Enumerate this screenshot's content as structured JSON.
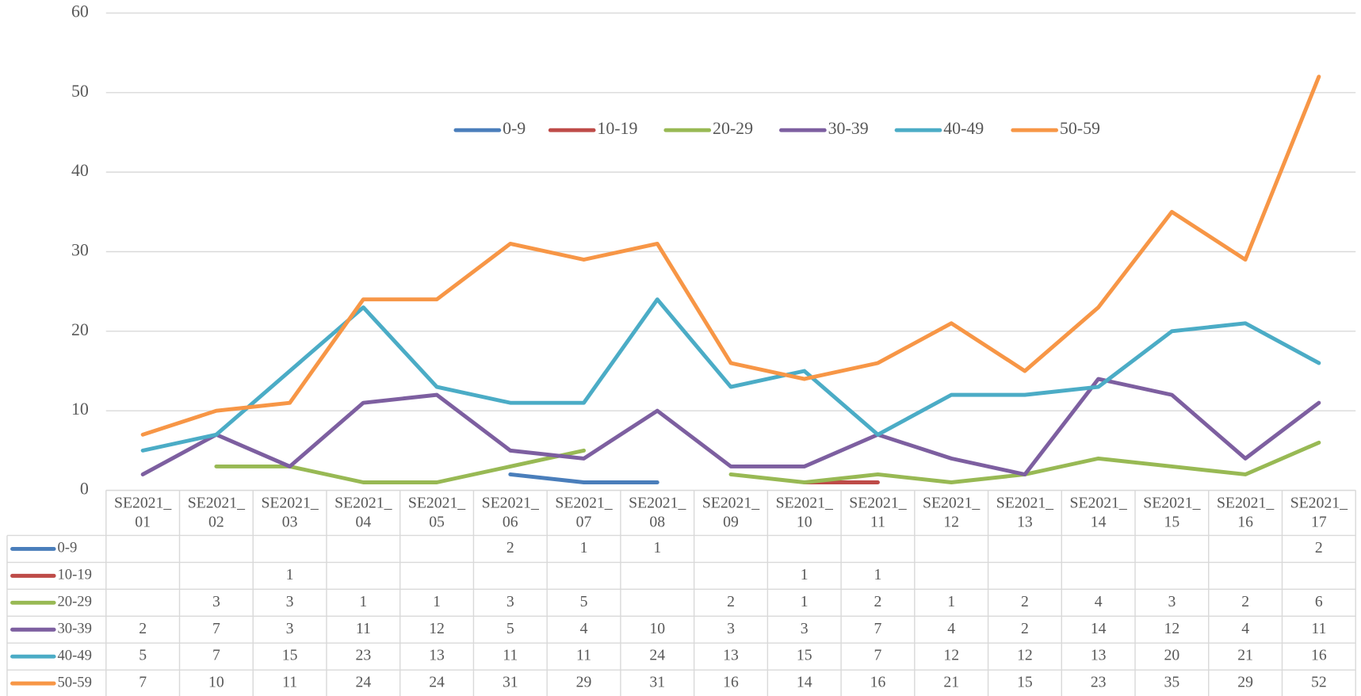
{
  "chart_data": {
    "type": "line",
    "categories": [
      "SE2021_01",
      "SE2021_02",
      "SE2021_03",
      "SE2021_04",
      "SE2021_05",
      "SE2021_06",
      "SE2021_07",
      "SE2021_08",
      "SE2021_09",
      "SE2021_10",
      "SE2021_11",
      "SE2021_12",
      "SE2021_13",
      "SE2021_14",
      "SE2021_15",
      "SE2021_16",
      "SE2021_17"
    ],
    "series": [
      {
        "name": "0-9",
        "color": "#4a7ebb",
        "values": [
          null,
          null,
          null,
          null,
          null,
          2,
          1,
          1,
          null,
          null,
          null,
          null,
          null,
          null,
          null,
          null,
          2
        ]
      },
      {
        "name": "10-19",
        "color": "#be4b48",
        "values": [
          null,
          null,
          1,
          null,
          null,
          null,
          null,
          null,
          null,
          1,
          1,
          null,
          null,
          null,
          null,
          null,
          null
        ]
      },
      {
        "name": "20-29",
        "color": "#98b954",
        "values": [
          null,
          3,
          3,
          1,
          1,
          3,
          5,
          null,
          2,
          1,
          2,
          1,
          2,
          4,
          3,
          2,
          6
        ]
      },
      {
        "name": "30-39",
        "color": "#7d5fa0",
        "values": [
          2,
          7,
          3,
          11,
          12,
          5,
          4,
          10,
          3,
          3,
          7,
          4,
          2,
          14,
          12,
          4,
          11
        ]
      },
      {
        "name": "40-49",
        "color": "#4bacc6",
        "values": [
          5,
          7,
          15,
          23,
          13,
          11,
          11,
          24,
          13,
          15,
          7,
          12,
          12,
          13,
          20,
          21,
          16
        ]
      },
      {
        "name": "50-59",
        "color": "#f79646",
        "values": [
          7,
          10,
          11,
          24,
          24,
          31,
          29,
          31,
          16,
          14,
          16,
          21,
          15,
          23,
          35,
          29,
          52
        ]
      }
    ],
    "ylim": [
      0,
      60
    ],
    "yticks": [
      0,
      10,
      20,
      30,
      40,
      50,
      60
    ],
    "grid": true,
    "legend": "top",
    "data_table": true
  }
}
